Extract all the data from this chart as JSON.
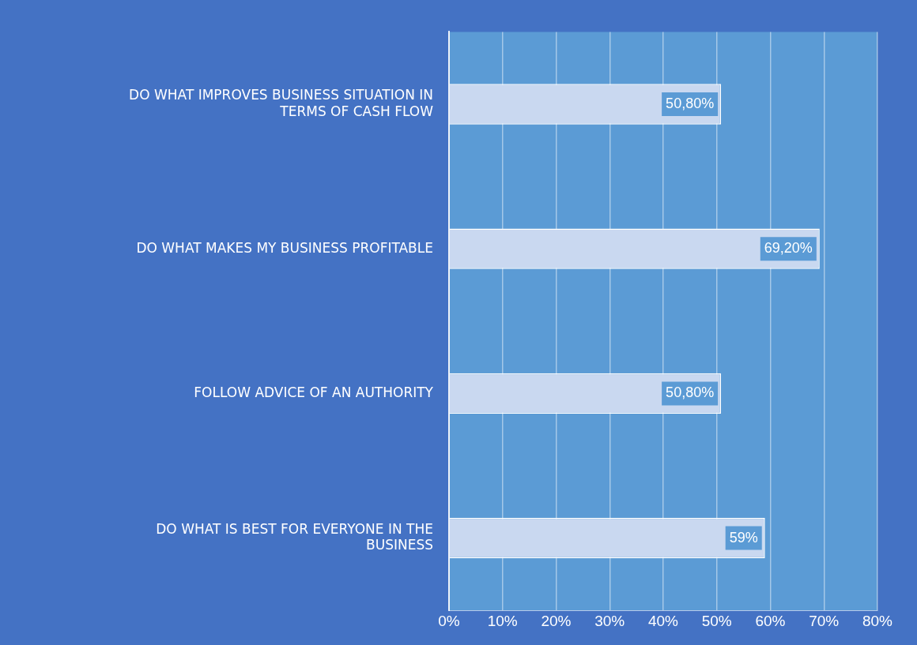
{
  "chart_data": {
    "type": "bar",
    "orientation": "horizontal",
    "categories": [
      "DO WHAT IMPROVES BUSINESS SITUATION IN TERMS OF CASH FLOW",
      "DO WHAT MAKES MY BUSINESS PROFITABLE",
      "FOLLOW ADVICE OF AN AUTHORITY",
      "DO WHAT IS BEST FOR EVERYONE IN THE BUSINESS"
    ],
    "values": [
      50.8,
      69.2,
      50.8,
      59
    ],
    "value_labels": [
      "50,80%",
      "69,20%",
      "50,80%",
      "59%"
    ],
    "color": "#c9d8f0",
    "xlim": [
      0,
      80
    ],
    "xticks": [
      {
        "value": 0,
        "label": "0%"
      },
      {
        "value": 10,
        "label": "10%"
      },
      {
        "value": 20,
        "label": "20%"
      },
      {
        "value": 30,
        "label": "30%"
      },
      {
        "value": 40,
        "label": "40%"
      },
      {
        "value": 50,
        "label": "50%"
      },
      {
        "value": 60,
        "label": "60%"
      },
      {
        "value": 70,
        "label": "70%"
      },
      {
        "value": 80,
        "label": "80%"
      }
    ],
    "grid": "x",
    "legend": false
  }
}
